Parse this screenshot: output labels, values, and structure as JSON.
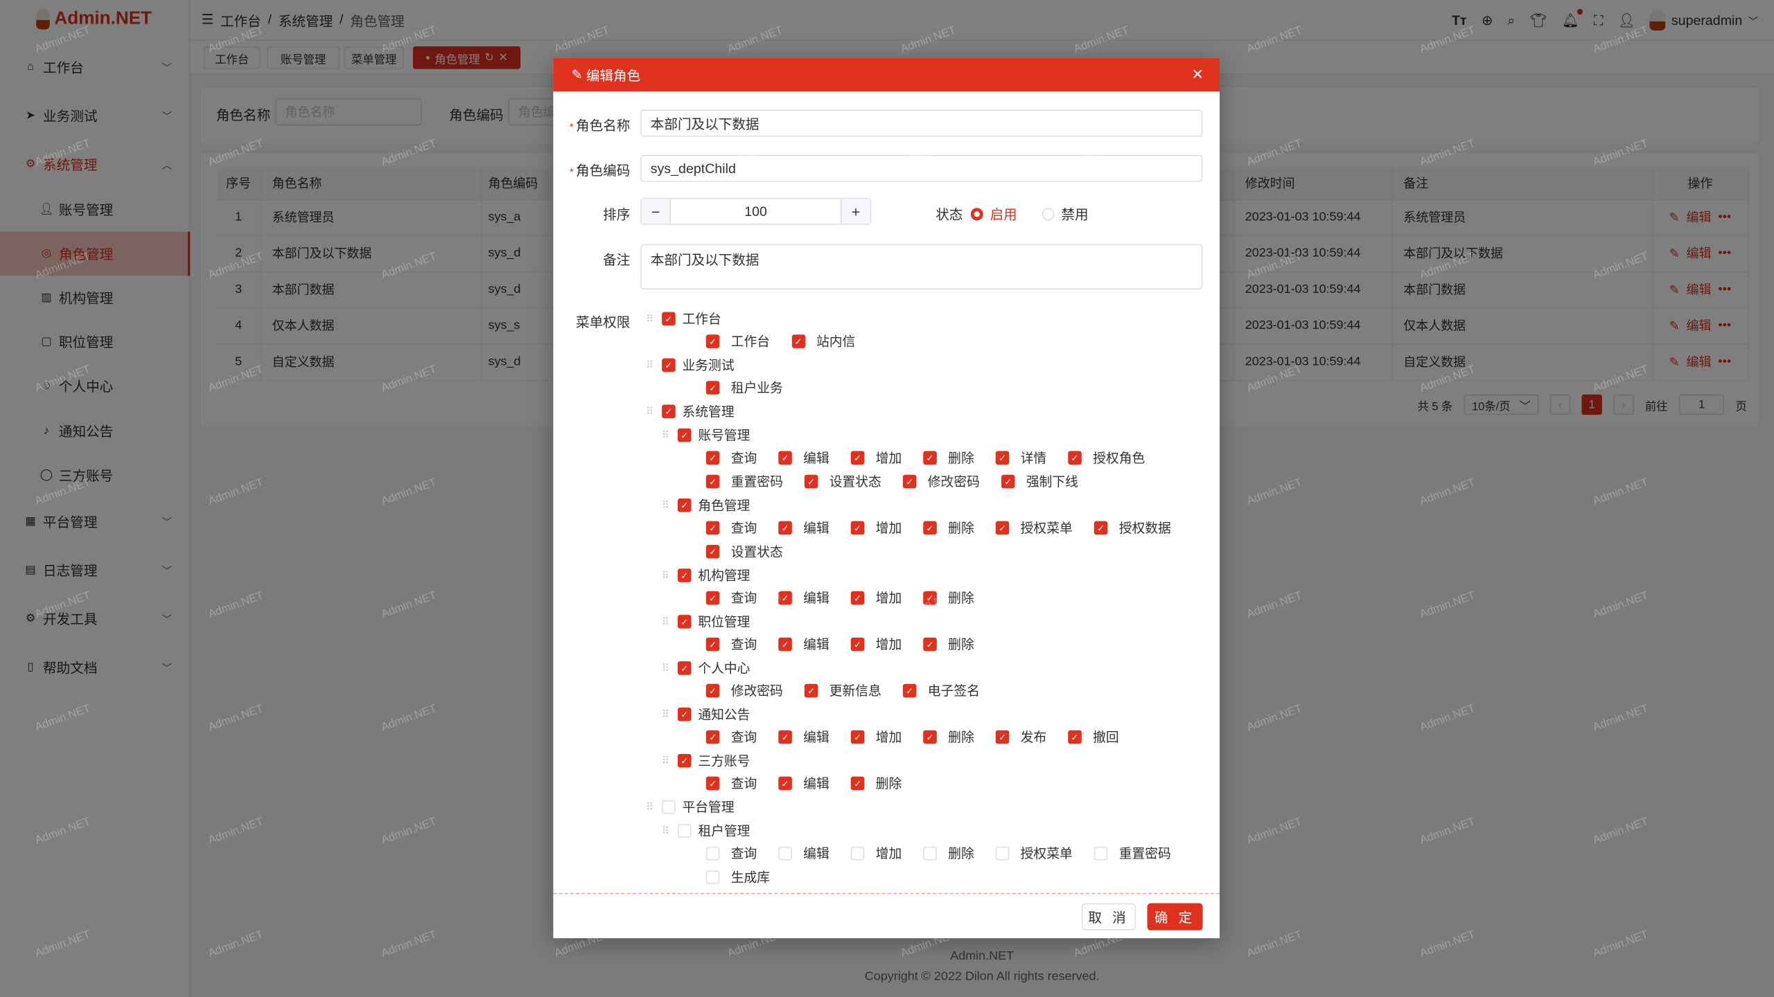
{
  "watermark_text": "Admin.NET",
  "colors": {
    "primary": "#e0301e"
  },
  "sidebar": {
    "logo": "Admin.NET",
    "items": [
      {
        "label": "工作台",
        "icon": "home-icon",
        "expandable": true
      },
      {
        "label": "业务测试",
        "icon": "navigation-icon",
        "expandable": true
      },
      {
        "label": "系统管理",
        "icon": "gear-icon",
        "expandable": true,
        "open": true
      },
      {
        "label": "账号管理",
        "icon": "user-icon",
        "sub": true
      },
      {
        "label": "角色管理",
        "icon": "role-icon",
        "sub": true,
        "active": true
      },
      {
        "label": "机构管理",
        "icon": "org-icon",
        "sub": true
      },
      {
        "label": "职位管理",
        "icon": "position-icon",
        "sub": true
      },
      {
        "label": "个人中心",
        "icon": "profile-icon",
        "sub": true
      },
      {
        "label": "通知公告",
        "icon": "bell-icon",
        "sub": true
      },
      {
        "label": "三方账号",
        "icon": "chat-icon",
        "sub": true
      },
      {
        "label": "平台管理",
        "icon": "grid-icon",
        "expandable": true
      },
      {
        "label": "日志管理",
        "icon": "log-icon",
        "expandable": true
      },
      {
        "label": "开发工具",
        "icon": "tool-icon",
        "expandable": true
      },
      {
        "label": "帮助文档",
        "icon": "doc-icon",
        "expandable": true
      }
    ]
  },
  "header": {
    "breadcrumb": [
      "工作台",
      "系统管理",
      "角色管理"
    ],
    "icons": [
      "font-size-icon",
      "language-icon",
      "search-icon",
      "skin-icon",
      "bell-icon",
      "fullscreen-icon",
      "user-icon"
    ],
    "username": "superadmin"
  },
  "tags": [
    {
      "label": "工作台"
    },
    {
      "label": "账号管理"
    },
    {
      "label": "菜单管理"
    },
    {
      "label": "角色管理",
      "active": true
    }
  ],
  "search": {
    "name_label": "角色名称",
    "name_placeholder": "角色名称",
    "code_label": "角色编码",
    "code_placeholder": "角色编码"
  },
  "table": {
    "headers": [
      "序号",
      "角色名称",
      "角色编码",
      "修改时间",
      "备注",
      "操作"
    ],
    "rows": [
      {
        "index": "1",
        "name": "系统管理员",
        "code": "sys_a",
        "time": "2023-01-03 10:59:44",
        "remark": "系统管理员"
      },
      {
        "index": "2",
        "name": "本部门及以下数据",
        "code": "sys_d",
        "time": "2023-01-03 10:59:44",
        "remark": "本部门及以下数据"
      },
      {
        "index": "3",
        "name": "本部门数据",
        "code": "sys_d",
        "time": "2023-01-03 10:59:44",
        "remark": "本部门数据"
      },
      {
        "index": "4",
        "name": "仅本人数据",
        "code": "sys_s",
        "time": "2023-01-03 10:59:44",
        "remark": "仅本人数据"
      },
      {
        "index": "5",
        "name": "自定义数据",
        "code": "sys_d",
        "time": "2023-01-03 10:59:44",
        "remark": "自定义数据"
      }
    ],
    "edit_label": "编辑",
    "more_label": "•••"
  },
  "pagination": {
    "total": "共 5 条",
    "page_size": "10条/页",
    "current": "1",
    "goto_label": "前往",
    "goto_value": "1",
    "page_suffix": "页"
  },
  "footer": {
    "brand": "Admin.NET",
    "copyright": "Copyright © 2022 Dilon All rights reserved."
  },
  "dialog": {
    "title": "编辑角色",
    "name_label": "角色名称",
    "name_value": "本部门及以下数据",
    "code_label": "角色编码",
    "code_value": "sys_deptChild",
    "order_label": "排序",
    "order_value": "100",
    "status_label": "状态",
    "status_options": [
      "启用",
      "禁用"
    ],
    "status_selected": "启用",
    "remark_label": "备注",
    "remark_value": "本部门及以下数据",
    "menu_label": "菜单权限",
    "tree": [
      {
        "label": "工作台",
        "checked": true,
        "leaves": [
          [
            "工作台",
            "站内信"
          ]
        ]
      },
      {
        "label": "业务测试",
        "checked": true,
        "leaves": [
          [
            "租户业务"
          ]
        ]
      },
      {
        "label": "系统管理",
        "checked": true,
        "children": [
          {
            "label": "账号管理",
            "checked": true,
            "leaves": [
              [
                "查询",
                "编辑",
                "增加",
                "删除",
                "详情",
                "授权角色"
              ],
              [
                "重置密码",
                "设置状态",
                "修改密码",
                "强制下线"
              ]
            ]
          },
          {
            "label": "角色管理",
            "checked": true,
            "leaves": [
              [
                "查询",
                "编辑",
                "增加",
                "删除",
                "授权菜单",
                "授权数据"
              ],
              [
                "设置状态"
              ]
            ]
          },
          {
            "label": "机构管理",
            "checked": true,
            "leaves": [
              [
                "查询",
                "编辑",
                "增加",
                "删除"
              ]
            ]
          },
          {
            "label": "职位管理",
            "checked": true,
            "leaves": [
              [
                "查询",
                "编辑",
                "增加",
                "删除"
              ]
            ]
          },
          {
            "label": "个人中心",
            "checked": true,
            "leaves": [
              [
                "修改密码",
                "更新信息",
                "电子签名"
              ]
            ]
          },
          {
            "label": "通知公告",
            "checked": true,
            "leaves": [
              [
                "查询",
                "编辑",
                "增加",
                "删除",
                "发布",
                "撤回"
              ]
            ]
          },
          {
            "label": "三方账号",
            "checked": true,
            "leaves": [
              [
                "查询",
                "编辑",
                "删除"
              ]
            ]
          }
        ]
      },
      {
        "label": "平台管理",
        "checked": false,
        "children": [
          {
            "label": "租户管理",
            "checked": false,
            "leaves": [
              [
                "查询",
                "编辑",
                "增加",
                "删除",
                "授权菜单",
                "重置密码"
              ],
              [
                "生成库"
              ]
            ]
          }
        ]
      }
    ],
    "cancel_label": "取 消",
    "confirm_label": "确 定"
  }
}
